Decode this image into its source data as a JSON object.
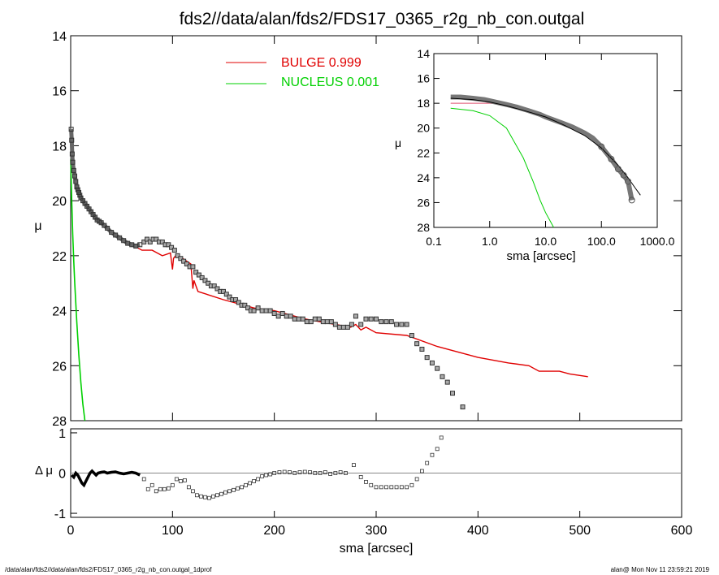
{
  "title": "fds2//data/alan/fds2/FDS17_0365_r2g_nb_con.outgal",
  "footer_left": "/data/alan/fds2//data/alan/fds2/FDS17_0365_r2g_nb_con.outgal_1dprof",
  "footer_right": "alan@  Mon Nov 11 23:59:21 2019",
  "colors": {
    "bulge": "#e00000",
    "nucleus": "#00d000",
    "zero_line": "#888888",
    "data": "#555555"
  },
  "chart_data": [
    {
      "id": "main",
      "type": "scatter",
      "ylabel": "μ",
      "xlim": [
        0,
        600
      ],
      "ylim": [
        28,
        14
      ],
      "x_ticks": [
        0,
        100,
        200,
        300,
        400,
        500,
        600
      ],
      "y_ticks": [
        14,
        16,
        18,
        20,
        22,
        24,
        26,
        28
      ],
      "legend": [
        {
          "name": "BULGE  0.999",
          "color": "#e00000"
        },
        {
          "name": "NUCLEUS  0.001",
          "color": "#00d000"
        }
      ],
      "observed": {
        "dense_x": [
          0.5,
          1,
          1.5,
          2,
          3,
          4,
          5,
          6,
          7,
          8,
          9,
          10,
          12,
          14,
          16,
          18,
          20,
          22,
          24,
          26,
          28,
          30,
          33,
          36,
          40,
          44,
          48,
          52,
          56,
          60,
          64,
          68
        ],
        "dense_y": [
          17.4,
          17.8,
          18.3,
          18.6,
          18.9,
          19.1,
          19.3,
          19.5,
          19.6,
          19.7,
          19.8,
          19.9,
          20.0,
          20.1,
          20.2,
          20.3,
          20.4,
          20.5,
          20.6,
          20.7,
          20.75,
          20.8,
          20.9,
          21.0,
          21.15,
          21.25,
          21.35,
          21.45,
          21.55,
          21.6,
          21.65,
          21.6
        ],
        "points_x": [
          72,
          75,
          78,
          81,
          84,
          87,
          90,
          93,
          96,
          99,
          102,
          105,
          108,
          111,
          114,
          117,
          120,
          123,
          126,
          129,
          132,
          135,
          138,
          141,
          144,
          147,
          150,
          153,
          156,
          159,
          162,
          165,
          168,
          171,
          174,
          177,
          180,
          184,
          188,
          192,
          196,
          200,
          204,
          208,
          212,
          216,
          220,
          224,
          228,
          232,
          236,
          240,
          244,
          248,
          252,
          256,
          260,
          264,
          268,
          272,
          276,
          280,
          285,
          290,
          295,
          300,
          305,
          310,
          315,
          320,
          325,
          330,
          335,
          340,
          345,
          350,
          355,
          360,
          365,
          370,
          375,
          385
        ],
        "points_y": [
          21.5,
          21.4,
          21.5,
          21.4,
          21.4,
          21.5,
          21.5,
          21.6,
          21.6,
          21.7,
          21.8,
          22.0,
          22.1,
          22.2,
          22.3,
          22.4,
          22.4,
          22.6,
          22.7,
          22.8,
          22.9,
          23.0,
          23.1,
          23.1,
          23.2,
          23.3,
          23.3,
          23.4,
          23.5,
          23.6,
          23.6,
          23.7,
          23.8,
          23.8,
          23.9,
          24.0,
          24.0,
          23.9,
          24.0,
          24.0,
          24.0,
          24.1,
          24.2,
          24.1,
          24.2,
          24.2,
          24.3,
          24.3,
          24.3,
          24.4,
          24.4,
          24.3,
          24.3,
          24.4,
          24.4,
          24.4,
          24.5,
          24.6,
          24.6,
          24.6,
          24.5,
          24.2,
          24.5,
          24.3,
          24.3,
          24.3,
          24.4,
          24.4,
          24.4,
          24.5,
          24.5,
          24.5,
          24.9,
          25.2,
          25.4,
          25.7,
          25.9,
          26.1,
          26.4,
          26.6,
          27.0,
          27.5
        ]
      },
      "bulge": {
        "x": [
          0.5,
          1,
          2,
          3,
          5,
          7,
          10,
          13,
          16,
          20,
          25,
          30,
          35,
          40,
          50,
          60,
          70,
          80,
          90,
          98,
          100,
          101,
          103,
          110,
          118,
          120,
          121,
          125,
          150,
          180,
          200,
          230,
          260,
          275,
          280,
          285,
          290,
          300,
          330,
          360,
          400,
          430,
          450,
          460,
          480,
          490,
          508
        ],
        "y": [
          18.0,
          18.3,
          18.7,
          19.0,
          19.4,
          19.6,
          19.8,
          20.0,
          20.2,
          20.4,
          20.6,
          20.8,
          21.0,
          21.1,
          21.4,
          21.6,
          21.8,
          21.8,
          22.0,
          21.9,
          22.5,
          22.1,
          22.0,
          22.1,
          22.3,
          23.2,
          22.9,
          23.3,
          23.6,
          23.9,
          24.0,
          24.3,
          24.5,
          24.6,
          24.5,
          24.7,
          24.6,
          24.8,
          24.9,
          25.3,
          25.7,
          25.9,
          26.0,
          26.2,
          26.2,
          26.3,
          26.4
        ]
      },
      "nucleus": {
        "x": [
          0,
          1,
          2,
          3,
          4,
          6,
          8,
          10,
          12,
          14
        ],
        "y": [
          18.5,
          20.0,
          21.2,
          22.2,
          23.0,
          24.4,
          25.6,
          26.6,
          27.4,
          28.0
        ]
      }
    },
    {
      "id": "inset",
      "type": "line",
      "xlabel": "sma [arcsec]",
      "ylabel": "μ",
      "xscale": "log",
      "xlim": [
        0.1,
        1000
      ],
      "ylim": [
        28,
        14
      ],
      "x_tick_labels": [
        "0.1",
        "1.0",
        "10.0",
        "100.0",
        "1000.0"
      ],
      "x_ticks": [
        0.1,
        1,
        10,
        100,
        1000
      ],
      "y_ticks": [
        14,
        16,
        18,
        20,
        22,
        24,
        26,
        28
      ],
      "observed": {
        "x": [
          0.2,
          0.3,
          0.5,
          0.8,
          1,
          2,
          3,
          5,
          8,
          10,
          20,
          30,
          50,
          70,
          100,
          150,
          200,
          250,
          300,
          350
        ],
        "y": [
          17.5,
          17.5,
          17.6,
          17.7,
          17.8,
          18.1,
          18.3,
          18.6,
          18.9,
          19.1,
          19.6,
          19.9,
          20.4,
          20.8,
          21.5,
          22.5,
          23.3,
          23.8,
          24.3,
          25.8
        ]
      },
      "model": {
        "x": [
          0.2,
          0.5,
          1,
          2,
          5,
          10,
          20,
          50,
          100,
          200,
          300,
          400,
          500
        ],
        "y": [
          17.6,
          17.7,
          17.9,
          18.2,
          18.7,
          19.1,
          19.7,
          20.6,
          21.6,
          23.0,
          24.0,
          24.8,
          25.4
        ]
      },
      "bulge": {
        "x": [
          0.2,
          0.5,
          1,
          2,
          5
        ],
        "y": [
          18.0,
          18.0,
          18.0,
          18.1,
          18.6
        ]
      },
      "nucleus": {
        "x": [
          0.2,
          0.5,
          1,
          2,
          4,
          6,
          8,
          10,
          14
        ],
        "y": [
          18.4,
          18.6,
          19.0,
          20.0,
          22.4,
          24.3,
          25.8,
          26.8,
          28.0
        ]
      }
    },
    {
      "id": "residual",
      "type": "scatter",
      "xlabel": "sma [arcsec]",
      "ylabel": "Δ μ",
      "xlim": [
        0,
        600
      ],
      "ylim": [
        -1.1,
        1.1
      ],
      "x_ticks": [
        0,
        100,
        200,
        300,
        400,
        500,
        600
      ],
      "y_ticks": [
        1,
        0,
        -1
      ],
      "dense_x": [
        1,
        3,
        5,
        7,
        9,
        11,
        13,
        15,
        17,
        19,
        21,
        23,
        25,
        27,
        30,
        33,
        36,
        40,
        44,
        48,
        52,
        56,
        60,
        64,
        68
      ],
      "dense_y": [
        -0.05,
        -0.1,
        0.0,
        -0.05,
        -0.15,
        -0.25,
        -0.3,
        -0.2,
        -0.1,
        0.0,
        0.05,
        0.0,
        -0.05,
        0.0,
        0.02,
        0.03,
        0.0,
        0.02,
        0.03,
        0.0,
        -0.02,
        0.0,
        0.02,
        0.0,
        -0.05
      ],
      "points_x": [
        72,
        76,
        80,
        84,
        88,
        92,
        96,
        100,
        104,
        108,
        112,
        116,
        120,
        124,
        128,
        132,
        136,
        140,
        144,
        148,
        152,
        156,
        160,
        164,
        168,
        172,
        176,
        180,
        184,
        188,
        192,
        196,
        200,
        205,
        210,
        215,
        220,
        225,
        230,
        235,
        240,
        245,
        250,
        255,
        260,
        265,
        270,
        278,
        285,
        290,
        295,
        300,
        305,
        310,
        315,
        320,
        325,
        330,
        335,
        340,
        345,
        350,
        355,
        360,
        364
      ],
      "points_y": [
        -0.15,
        -0.4,
        -0.3,
        -0.45,
        -0.4,
        -0.4,
        -0.38,
        -0.3,
        -0.15,
        -0.2,
        -0.18,
        -0.35,
        -0.45,
        -0.55,
        -0.58,
        -0.6,
        -0.62,
        -0.58,
        -0.55,
        -0.52,
        -0.48,
        -0.45,
        -0.42,
        -0.38,
        -0.35,
        -0.3,
        -0.25,
        -0.2,
        -0.15,
        -0.08,
        -0.05,
        -0.03,
        0.0,
        0.02,
        0.03,
        0.02,
        0.0,
        0.02,
        0.03,
        0.02,
        0.0,
        0.0,
        0.02,
        -0.02,
        0.0,
        0.02,
        0.0,
        0.2,
        -0.1,
        -0.22,
        -0.3,
        -0.35,
        -0.35,
        -0.35,
        -0.35,
        -0.35,
        -0.35,
        -0.35,
        -0.3,
        -0.15,
        0.05,
        0.25,
        0.45,
        0.6,
        0.88
      ]
    }
  ]
}
